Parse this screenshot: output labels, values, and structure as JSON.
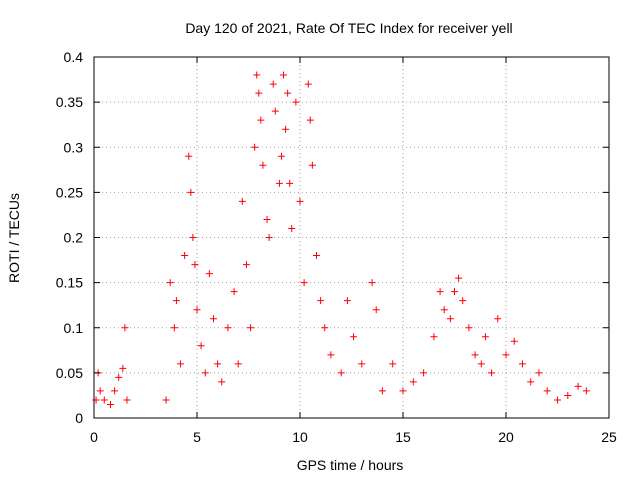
{
  "chart_data": {
    "type": "scatter",
    "title": "Day 120 of 2021, Rate Of TEC Index for receiver yell",
    "xlabel": "GPS time / hours",
    "ylabel": "ROTI / TECUs",
    "xlim": [
      0,
      25
    ],
    "ylim": [
      0,
      0.4
    ],
    "xticks": [
      0,
      5,
      10,
      15,
      20,
      25
    ],
    "xtick_labels": [
      "0",
      "5",
      "10",
      "15",
      "20",
      "25"
    ],
    "yticks": [
      0,
      0.05,
      0.1,
      0.15,
      0.2,
      0.25,
      0.3,
      0.35,
      0.4
    ],
    "ytick_labels": [
      "0",
      "0.05",
      "0.1",
      "0.15",
      "0.2",
      "0.25",
      "0.3",
      "0.35",
      "0.4"
    ],
    "grid": true,
    "marker": "+",
    "marker_color": "#ff0000",
    "series": [
      {
        "name": "ROTI",
        "points": [
          [
            0.1,
            0.02
          ],
          [
            0.2,
            0.05
          ],
          [
            0.3,
            0.03
          ],
          [
            0.5,
            0.02
          ],
          [
            0.8,
            0.015
          ],
          [
            1.0,
            0.03
          ],
          [
            1.2,
            0.045
          ],
          [
            1.4,
            0.055
          ],
          [
            1.5,
            0.1
          ],
          [
            1.6,
            0.02
          ],
          [
            3.5,
            0.02
          ],
          [
            3.7,
            0.15
          ],
          [
            3.9,
            0.1
          ],
          [
            4.0,
            0.13
          ],
          [
            4.2,
            0.06
          ],
          [
            4.4,
            0.18
          ],
          [
            4.6,
            0.29
          ],
          [
            4.7,
            0.25
          ],
          [
            4.8,
            0.2
          ],
          [
            4.9,
            0.17
          ],
          [
            5.0,
            0.12
          ],
          [
            5.2,
            0.08
          ],
          [
            5.4,
            0.05
          ],
          [
            5.6,
            0.16
          ],
          [
            5.8,
            0.11
          ],
          [
            6.0,
            0.06
          ],
          [
            6.2,
            0.04
          ],
          [
            6.5,
            0.1
          ],
          [
            6.8,
            0.14
          ],
          [
            7.0,
            0.06
          ],
          [
            7.2,
            0.24
          ],
          [
            7.4,
            0.17
          ],
          [
            7.6,
            0.1
          ],
          [
            7.8,
            0.3
          ],
          [
            7.9,
            0.38
          ],
          [
            8.0,
            0.36
          ],
          [
            8.1,
            0.33
          ],
          [
            8.2,
            0.28
          ],
          [
            8.4,
            0.22
          ],
          [
            8.5,
            0.2
          ],
          [
            8.7,
            0.37
          ],
          [
            8.8,
            0.34
          ],
          [
            9.0,
            0.26
          ],
          [
            9.1,
            0.29
          ],
          [
            9.2,
            0.38
          ],
          [
            9.3,
            0.32
          ],
          [
            9.4,
            0.36
          ],
          [
            9.5,
            0.26
          ],
          [
            9.6,
            0.21
          ],
          [
            9.8,
            0.35
          ],
          [
            10.0,
            0.24
          ],
          [
            10.2,
            0.15
          ],
          [
            10.4,
            0.37
          ],
          [
            10.5,
            0.33
          ],
          [
            10.6,
            0.28
          ],
          [
            10.8,
            0.18
          ],
          [
            11.0,
            0.13
          ],
          [
            11.2,
            0.1
          ],
          [
            11.5,
            0.07
          ],
          [
            12.0,
            0.05
          ],
          [
            12.3,
            0.13
          ],
          [
            12.6,
            0.09
          ],
          [
            13.0,
            0.06
          ],
          [
            13.5,
            0.15
          ],
          [
            13.7,
            0.12
          ],
          [
            14.0,
            0.03
          ],
          [
            14.5,
            0.06
          ],
          [
            15.0,
            0.03
          ],
          [
            15.5,
            0.04
          ],
          [
            16.0,
            0.05
          ],
          [
            16.5,
            0.09
          ],
          [
            16.8,
            0.14
          ],
          [
            17.0,
            0.12
          ],
          [
            17.3,
            0.11
          ],
          [
            17.5,
            0.14
          ],
          [
            17.7,
            0.155
          ],
          [
            17.9,
            0.13
          ],
          [
            18.2,
            0.1
          ],
          [
            18.5,
            0.07
          ],
          [
            18.8,
            0.06
          ],
          [
            19.0,
            0.09
          ],
          [
            19.3,
            0.05
          ],
          [
            19.6,
            0.11
          ],
          [
            20.0,
            0.07
          ],
          [
            20.4,
            0.085
          ],
          [
            20.8,
            0.06
          ],
          [
            21.2,
            0.04
          ],
          [
            21.6,
            0.05
          ],
          [
            22.0,
            0.03
          ],
          [
            22.5,
            0.02
          ],
          [
            23.0,
            0.025
          ],
          [
            23.5,
            0.035
          ],
          [
            23.9,
            0.03
          ]
        ]
      }
    ]
  }
}
